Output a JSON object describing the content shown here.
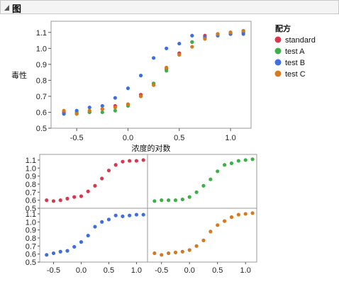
{
  "panel": {
    "title": "图",
    "disclosure_icon": "collapse-triangle-icon"
  },
  "colors": {
    "standard": "#d6394e",
    "test_a": "#3db04a",
    "test_b": "#3f6fdb",
    "test_c": "#d57a1f",
    "frame": "#9a9a9a",
    "grid": "#d9d9d9"
  },
  "chart_data": [
    {
      "type": "scatter",
      "title": "",
      "xlabel": "浓度的对数",
      "ylabel": "毒性",
      "xlim": [
        -0.75,
        1.2
      ],
      "ylim": [
        0.5,
        1.17
      ],
      "x_ticks": [
        "-0.5",
        "0.0",
        "0.5",
        "1.0"
      ],
      "y_ticks": [
        "0.5",
        "0.6",
        "0.7",
        "0.8",
        "0.9",
        "1.0",
        "1.1"
      ],
      "legend": {
        "title": "配方",
        "placement": "right"
      },
      "series": [
        {
          "name": "standard",
          "color": "#d6394e",
          "x": [
            -0.625,
            -0.5,
            -0.375,
            -0.25,
            -0.125,
            0,
            0.125,
            0.25,
            0.375,
            0.5,
            0.625,
            0.75,
            0.875,
            1,
            1.125
          ],
          "y": [
            0.6,
            0.59,
            0.6,
            0.62,
            0.64,
            0.65,
            0.71,
            0.78,
            0.87,
            0.97,
            1.04,
            1.08,
            1.09,
            1.09,
            1.1
          ]
        },
        {
          "name": "test A",
          "color": "#3db04a",
          "x": [
            -0.625,
            -0.5,
            -0.375,
            -0.25,
            -0.125,
            0,
            0.125,
            0.25,
            0.375,
            0.5,
            0.625,
            0.75,
            0.875,
            1,
            1.125
          ],
          "y": [
            0.59,
            0.6,
            0.6,
            0.6,
            0.61,
            0.64,
            0.7,
            0.78,
            0.86,
            0.96,
            1.04,
            1.06,
            1.09,
            1.1,
            1.11
          ]
        },
        {
          "name": "test B",
          "color": "#3f6fdb",
          "x": [
            -0.625,
            -0.5,
            -0.375,
            -0.25,
            -0.125,
            0,
            0.125,
            0.25,
            0.375,
            0.5,
            0.625,
            0.75,
            0.875,
            1,
            1.125
          ],
          "y": [
            0.59,
            0.61,
            0.63,
            0.64,
            0.69,
            0.75,
            0.83,
            0.94,
            1.0,
            1.03,
            1.08,
            1.07,
            1.08,
            1.09,
            1.09
          ]
        },
        {
          "name": "test C",
          "color": "#d57a1f",
          "x": [
            -0.625,
            -0.5,
            -0.375,
            -0.25,
            -0.125,
            0,
            0.125,
            0.25,
            0.375,
            0.5,
            0.625,
            0.75,
            0.875,
            1,
            1.125
          ],
          "y": [
            0.61,
            0.59,
            0.61,
            0.62,
            0.63,
            0.65,
            0.7,
            0.77,
            0.88,
            0.96,
            1.01,
            1.06,
            1.09,
            1.1,
            1.11
          ]
        }
      ]
    },
    {
      "type": "scatter",
      "title": "",
      "small_multiples": true,
      "layout": "2x2",
      "xlim": [
        -0.75,
        1.2
      ],
      "ylim": [
        0.5,
        1.17
      ],
      "x_ticks": [
        "-0.5",
        "0.0",
        "0.5",
        "1.0"
      ],
      "y_ticks": [
        "0.5",
        "0.6",
        "0.7",
        "0.8",
        "0.9",
        "1.0",
        "1.1"
      ],
      "panels": [
        {
          "series": "standard",
          "position": "top-left"
        },
        {
          "series": "test A",
          "position": "top-right"
        },
        {
          "series": "test B",
          "position": "bottom-left"
        },
        {
          "series": "test C",
          "position": "bottom-right"
        }
      ]
    }
  ]
}
